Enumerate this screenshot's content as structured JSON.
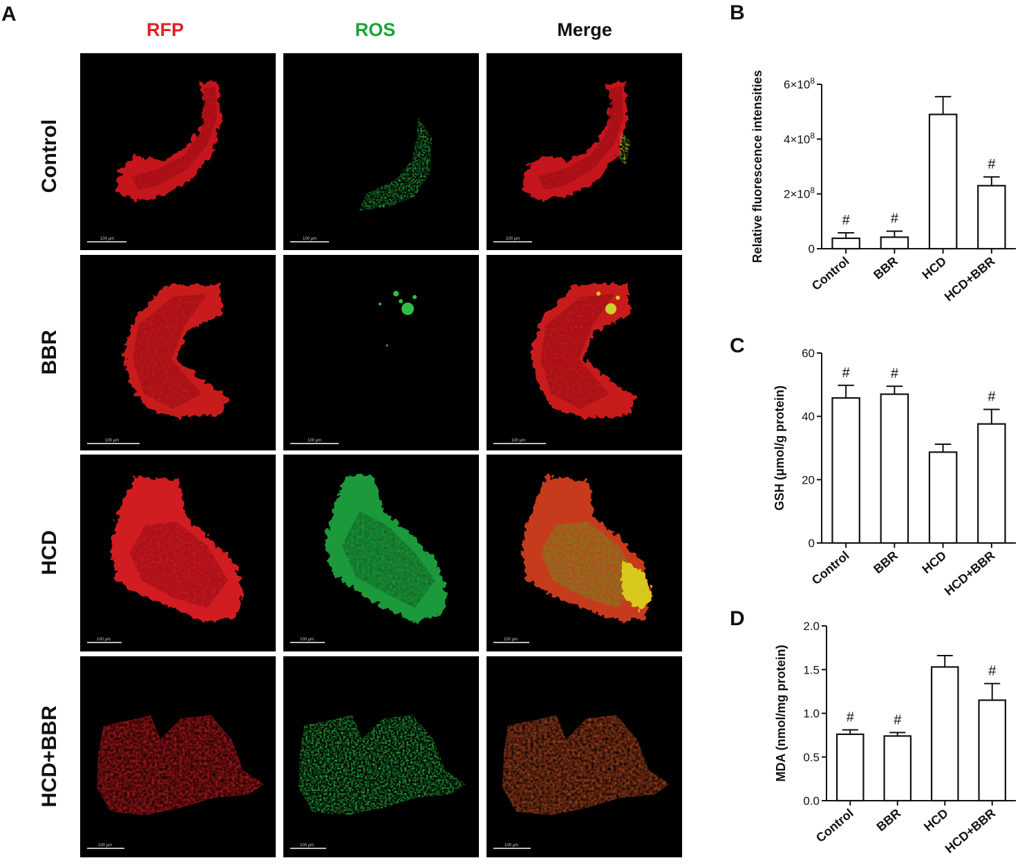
{
  "panel_a": {
    "letter": "A",
    "columns": [
      {
        "label": "RFP",
        "color": "#e31e24"
      },
      {
        "label": "ROS",
        "color": "#1aa337"
      },
      {
        "label": "Merge",
        "color": "#111111"
      }
    ],
    "rows": [
      "Control",
      "BBR",
      "HCD",
      "HCD+BBR"
    ],
    "scale_bar_label": "100 μm"
  },
  "chart_data": [
    {
      "panel": "B",
      "type": "bar",
      "categories": [
        "Control",
        "BBR",
        "HCD",
        "HCD+BBR"
      ],
      "values": [
        0.38,
        0.42,
        4.9,
        2.3
      ],
      "errors": [
        0.2,
        0.22,
        0.65,
        0.32
      ],
      "significance": [
        "#",
        "#",
        "",
        "#"
      ],
      "ylabel": "Relative fluorescence intensities",
      "ylim": [
        0,
        6
      ],
      "yticks": [
        {
          "value": 0,
          "base": "0",
          "exp": ""
        },
        {
          "value": 2,
          "base": "2×10",
          "exp": "8"
        },
        {
          "value": 4,
          "base": "4×10",
          "exp": "8"
        },
        {
          "value": 6,
          "base": "6×10",
          "exp": "8"
        }
      ]
    },
    {
      "panel": "C",
      "type": "bar",
      "categories": [
        "Control",
        "BBR",
        "HCD",
        "HCD+BBR"
      ],
      "values": [
        45.8,
        47.0,
        28.7,
        37.6
      ],
      "errors": [
        4.0,
        2.5,
        2.5,
        4.6
      ],
      "significance": [
        "#",
        "#",
        "",
        "#"
      ],
      "ylabel": "GSH (μmol/g protein)",
      "ylim": [
        0,
        60
      ],
      "yticks": [
        {
          "value": 0,
          "base": "0",
          "exp": ""
        },
        {
          "value": 20,
          "base": "20",
          "exp": ""
        },
        {
          "value": 40,
          "base": "40",
          "exp": ""
        },
        {
          "value": 60,
          "base": "60",
          "exp": ""
        }
      ]
    },
    {
      "panel": "D",
      "type": "bar",
      "categories": [
        "Control",
        "BBR",
        "HCD",
        "HCD+BBR"
      ],
      "values": [
        0.76,
        0.74,
        1.53,
        1.15
      ],
      "errors": [
        0.05,
        0.04,
        0.13,
        0.19
      ],
      "significance": [
        "#",
        "#",
        "",
        "#"
      ],
      "ylabel": "MDA (nmol/mg protein)",
      "ylim": [
        0,
        2
      ],
      "yticks": [
        {
          "value": 0,
          "base": "0.0",
          "exp": ""
        },
        {
          "value": 0.5,
          "base": "0.5",
          "exp": ""
        },
        {
          "value": 1,
          "base": "1.0",
          "exp": ""
        },
        {
          "value": 1.5,
          "base": "1.5",
          "exp": ""
        },
        {
          "value": 2,
          "base": "2.0",
          "exp": ""
        }
      ]
    }
  ]
}
